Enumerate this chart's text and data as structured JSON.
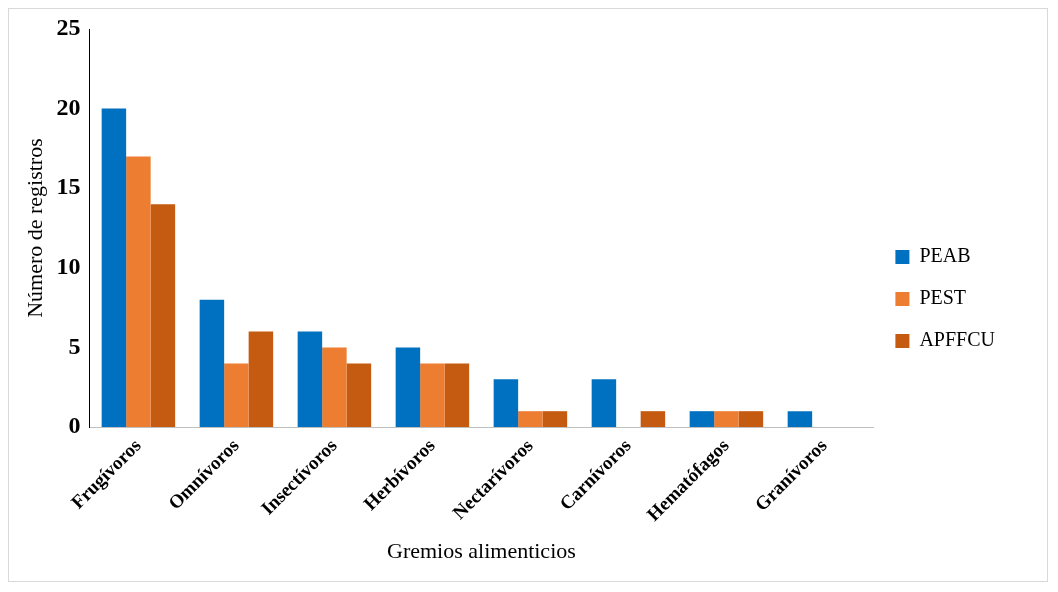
{
  "chart_data": {
    "type": "bar",
    "xlabel": "Gremios alimenticios",
    "ylabel": "Número de registros",
    "categories": [
      "Frugívoros",
      "Omnívoros",
      "Insectívoros",
      "Herbívoros",
      "Nectarívoros",
      "Carnívoros",
      "Hematófagos",
      "Granívoros"
    ],
    "series": [
      {
        "name": "PEAB",
        "color": "#0070c0",
        "values": [
          20,
          8,
          6,
          5,
          3,
          3,
          1,
          1
        ]
      },
      {
        "name": "PEST",
        "color": "#ed7d31",
        "values": [
          17,
          4,
          5,
          4,
          1,
          0,
          1,
          0
        ]
      },
      {
        "name": "APFFCU",
        "color": "#c55a11",
        "values": [
          14,
          6,
          4,
          4,
          1,
          1,
          1,
          0
        ]
      }
    ],
    "ylim": [
      0,
      25
    ],
    "yticks": [
      0,
      5,
      10,
      15,
      20,
      25
    ],
    "grid": false,
    "legend": "right"
  }
}
